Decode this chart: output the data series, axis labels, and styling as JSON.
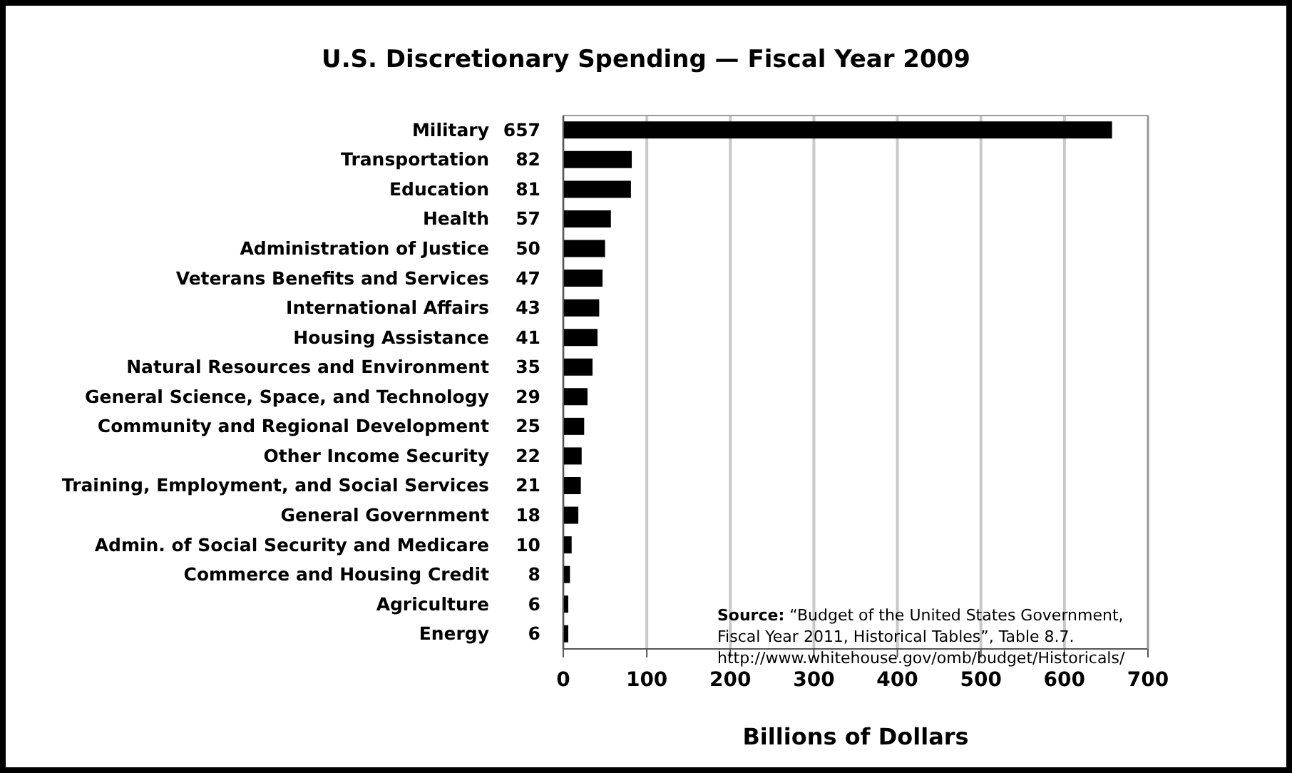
{
  "chart_data": {
    "type": "bar",
    "orientation": "horizontal",
    "title": "U.S. Discretionary Spending — Fiscal Year 2009",
    "xlabel": "Billions of Dollars",
    "categories": [
      "Military",
      "Transportation",
      "Education",
      "Health",
      "Administration of Justice",
      "Veterans Benefits and Services",
      "International Affairs",
      "Housing Assistance",
      "Natural Resources and Environment",
      "General Science, Space, and Technology",
      "Community and Regional Development",
      "Other Income Security",
      "Training, Employment, and Social Services",
      "General Government",
      "Admin. of Social Security and Medicare",
      "Commerce and Housing Credit",
      "Agriculture",
      "Energy"
    ],
    "values": [
      657,
      82,
      81,
      57,
      50,
      47,
      43,
      41,
      35,
      29,
      25,
      22,
      21,
      18,
      10,
      8,
      6,
      6
    ],
    "color": "#000000",
    "data_labels": true,
    "xlim": [
      0,
      700
    ],
    "xticks": [
      0,
      100,
      200,
      300,
      400,
      500,
      600,
      700
    ],
    "grid": "x",
    "legend": false,
    "annotations": [
      "Source: “Budget of the United States Government,",
      "Fiscal Year 2011, Historical Tables”, Table 8.7.",
      "http://www.whitehouse.gov/omb/budget/Historicals/"
    ]
  }
}
